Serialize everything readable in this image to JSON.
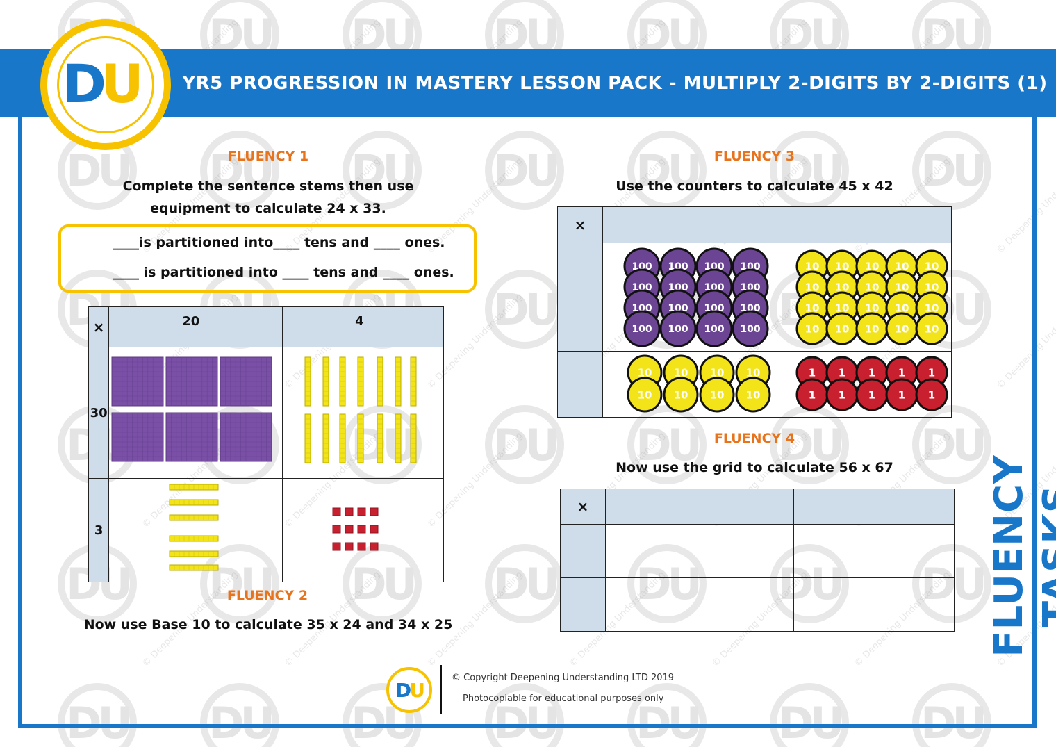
{
  "header": {
    "title": "YR5 PROGRESSION IN MASTERY LESSON PACK - MULTIPLY 2-DIGITS BY 2-DIGITS (1)",
    "logo_text": "DU"
  },
  "fluency1": {
    "heading": "FLUENCY 1",
    "instruction_line1": "Complete the sentence stems then use",
    "instruction_line2": "equipment to calculate 24 x 33.",
    "stem1": {
      "blank1": "____",
      "t1": "is partitioned into",
      "blank2": "____",
      "t2": "tens and",
      "blank3": "____",
      "t3": "ones."
    },
    "stem2": {
      "blank1": "____",
      "t1": "is partitioned into",
      "blank2": "____",
      "t2": "tens and",
      "blank3": "____",
      "t3": "ones."
    },
    "grid": {
      "corner": "×",
      "col1": "20",
      "col2": "4",
      "row1": "30",
      "row2": "3"
    }
  },
  "fluency2": {
    "heading": "FLUENCY 2",
    "instruction": "Now use Base 10 to calculate 35 x 24 and 34 x 25"
  },
  "fluency3": {
    "heading": "FLUENCY 3",
    "instruction": "Use the counters to calculate 45 x 42",
    "corner": "×",
    "counter_labels": {
      "hundred": "100",
      "ten": "10",
      "one": "1"
    }
  },
  "fluency4": {
    "heading": "FLUENCY 4",
    "instruction": "Now use the grid to calculate  56 x 67",
    "corner": "×"
  },
  "side_label": "FLUENCY TASKS",
  "footer": {
    "copyright": "© Copyright Deepening Understanding LTD 2019",
    "note": "Photocopiable for educational purposes only",
    "logo_text": "DU"
  },
  "watermark": {
    "logo_text": "DU",
    "text": "© Deepening Understanding"
  },
  "colors": {
    "brand_blue": "#1877c9",
    "brand_yellow": "#f7c200",
    "heading_orange": "#e8731d",
    "purple": "#7a4fa6",
    "counter_yellow": "#f2e418",
    "counter_red": "#c8202f"
  }
}
